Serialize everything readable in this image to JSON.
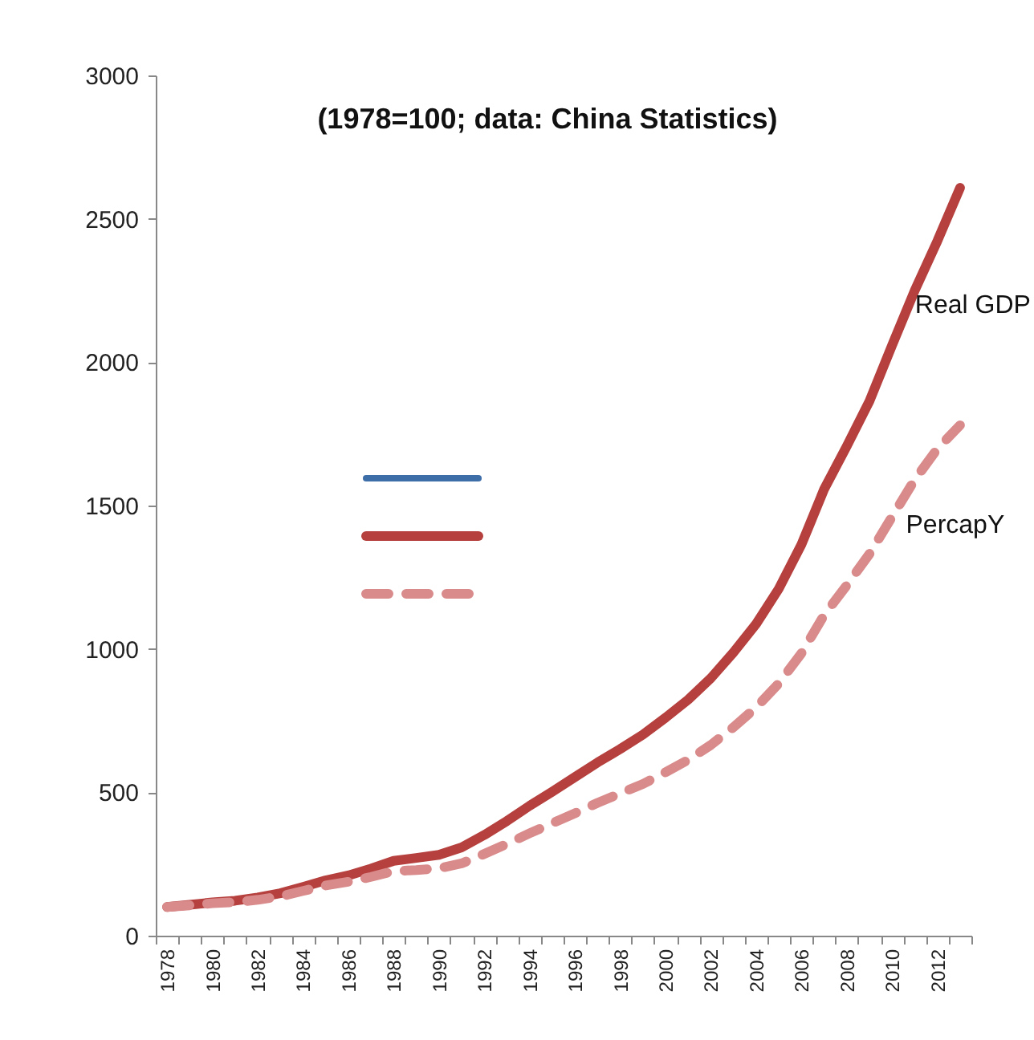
{
  "chart_data": {
    "type": "line",
    "title": "(1978=100; data: China Statistics)",
    "categories": [
      "1978",
      null,
      "1980",
      null,
      "1982",
      null,
      "1984",
      null,
      "1986",
      null,
      "1988",
      null,
      "1990",
      null,
      "1992",
      null,
      "1994",
      null,
      "1996",
      null,
      "1998",
      null,
      "2000",
      null,
      "2002",
      null,
      "2004",
      null,
      "2006",
      null,
      "2008",
      null,
      "2010",
      null,
      "2012",
      null
    ],
    "series": [
      {
        "name": "Real GDP",
        "color": "#b5403e",
        "line_style": "solid",
        "values": [
          100,
          108,
          116,
          122,
          133,
          148,
          170,
          193,
          210,
          234,
          261,
          271,
          282,
          308,
          351,
          400,
          453,
          502,
          553,
          604,
          651,
          701,
          760,
          823,
          898,
          988,
          1087,
          1210,
          1364,
          1557,
          1707,
          1864,
          2059,
          2250,
          2423,
          2608
        ]
      },
      {
        "name": "PercapY",
        "color": "#d98a8b",
        "line_style": "dashed",
        "values": [
          100,
          106,
          113,
          117,
          125,
          137,
          156,
          175,
          188,
          205,
          225,
          229,
          235,
          252,
          285,
          320,
          357,
          392,
          427,
          463,
          496,
          529,
          570,
          613,
          665,
          727,
          796,
          880,
          985,
          1118,
          1222,
          1331,
          1461,
          1590,
          1698,
          1780
        ]
      }
    ],
    "ylim": [
      0,
      3000
    ],
    "yticks": [
      0,
      500,
      1000,
      1500,
      2000,
      2500,
      3000
    ],
    "grid": false,
    "legend": false
  }
}
